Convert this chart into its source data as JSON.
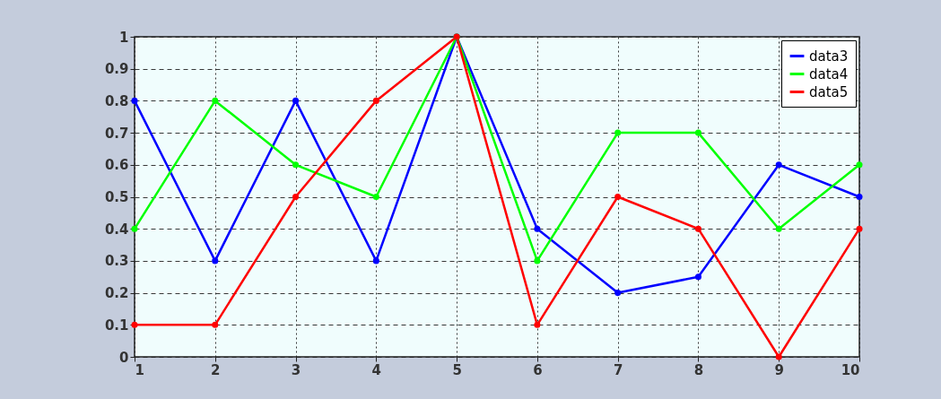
{
  "chart_data": {
    "type": "line",
    "x": [
      1,
      2,
      3,
      4,
      5,
      6,
      7,
      8,
      9,
      10
    ],
    "series": [
      {
        "name": "data3",
        "color": "#0000ff",
        "values": [
          0.8,
          0.3,
          0.8,
          0.3,
          1,
          0.4,
          0.2,
          0.25,
          0.6,
          0.5
        ]
      },
      {
        "name": "data4",
        "color": "#00ff00",
        "values": [
          0.4,
          0.8,
          0.6,
          0.5,
          1,
          0.3,
          0.7,
          0.7,
          0.4,
          0.6
        ]
      },
      {
        "name": "data5",
        "color": "#ff0000",
        "values": [
          0.1,
          0.1,
          0.5,
          0.8,
          1,
          0.1,
          0.5,
          0.4,
          0,
          0.4
        ]
      }
    ],
    "xlim": [
      1,
      10
    ],
    "xticks": [
      1,
      2,
      3,
      4,
      5,
      6,
      7,
      8,
      9,
      10
    ],
    "ylim": [
      0,
      1
    ],
    "yticks": [
      0,
      0.1,
      0.2,
      0.3,
      0.4,
      0.5,
      0.6,
      0.7,
      0.8,
      0.9,
      1
    ],
    "grid": true,
    "legend": "top right",
    "marker": "circle",
    "line_style": "solid"
  }
}
